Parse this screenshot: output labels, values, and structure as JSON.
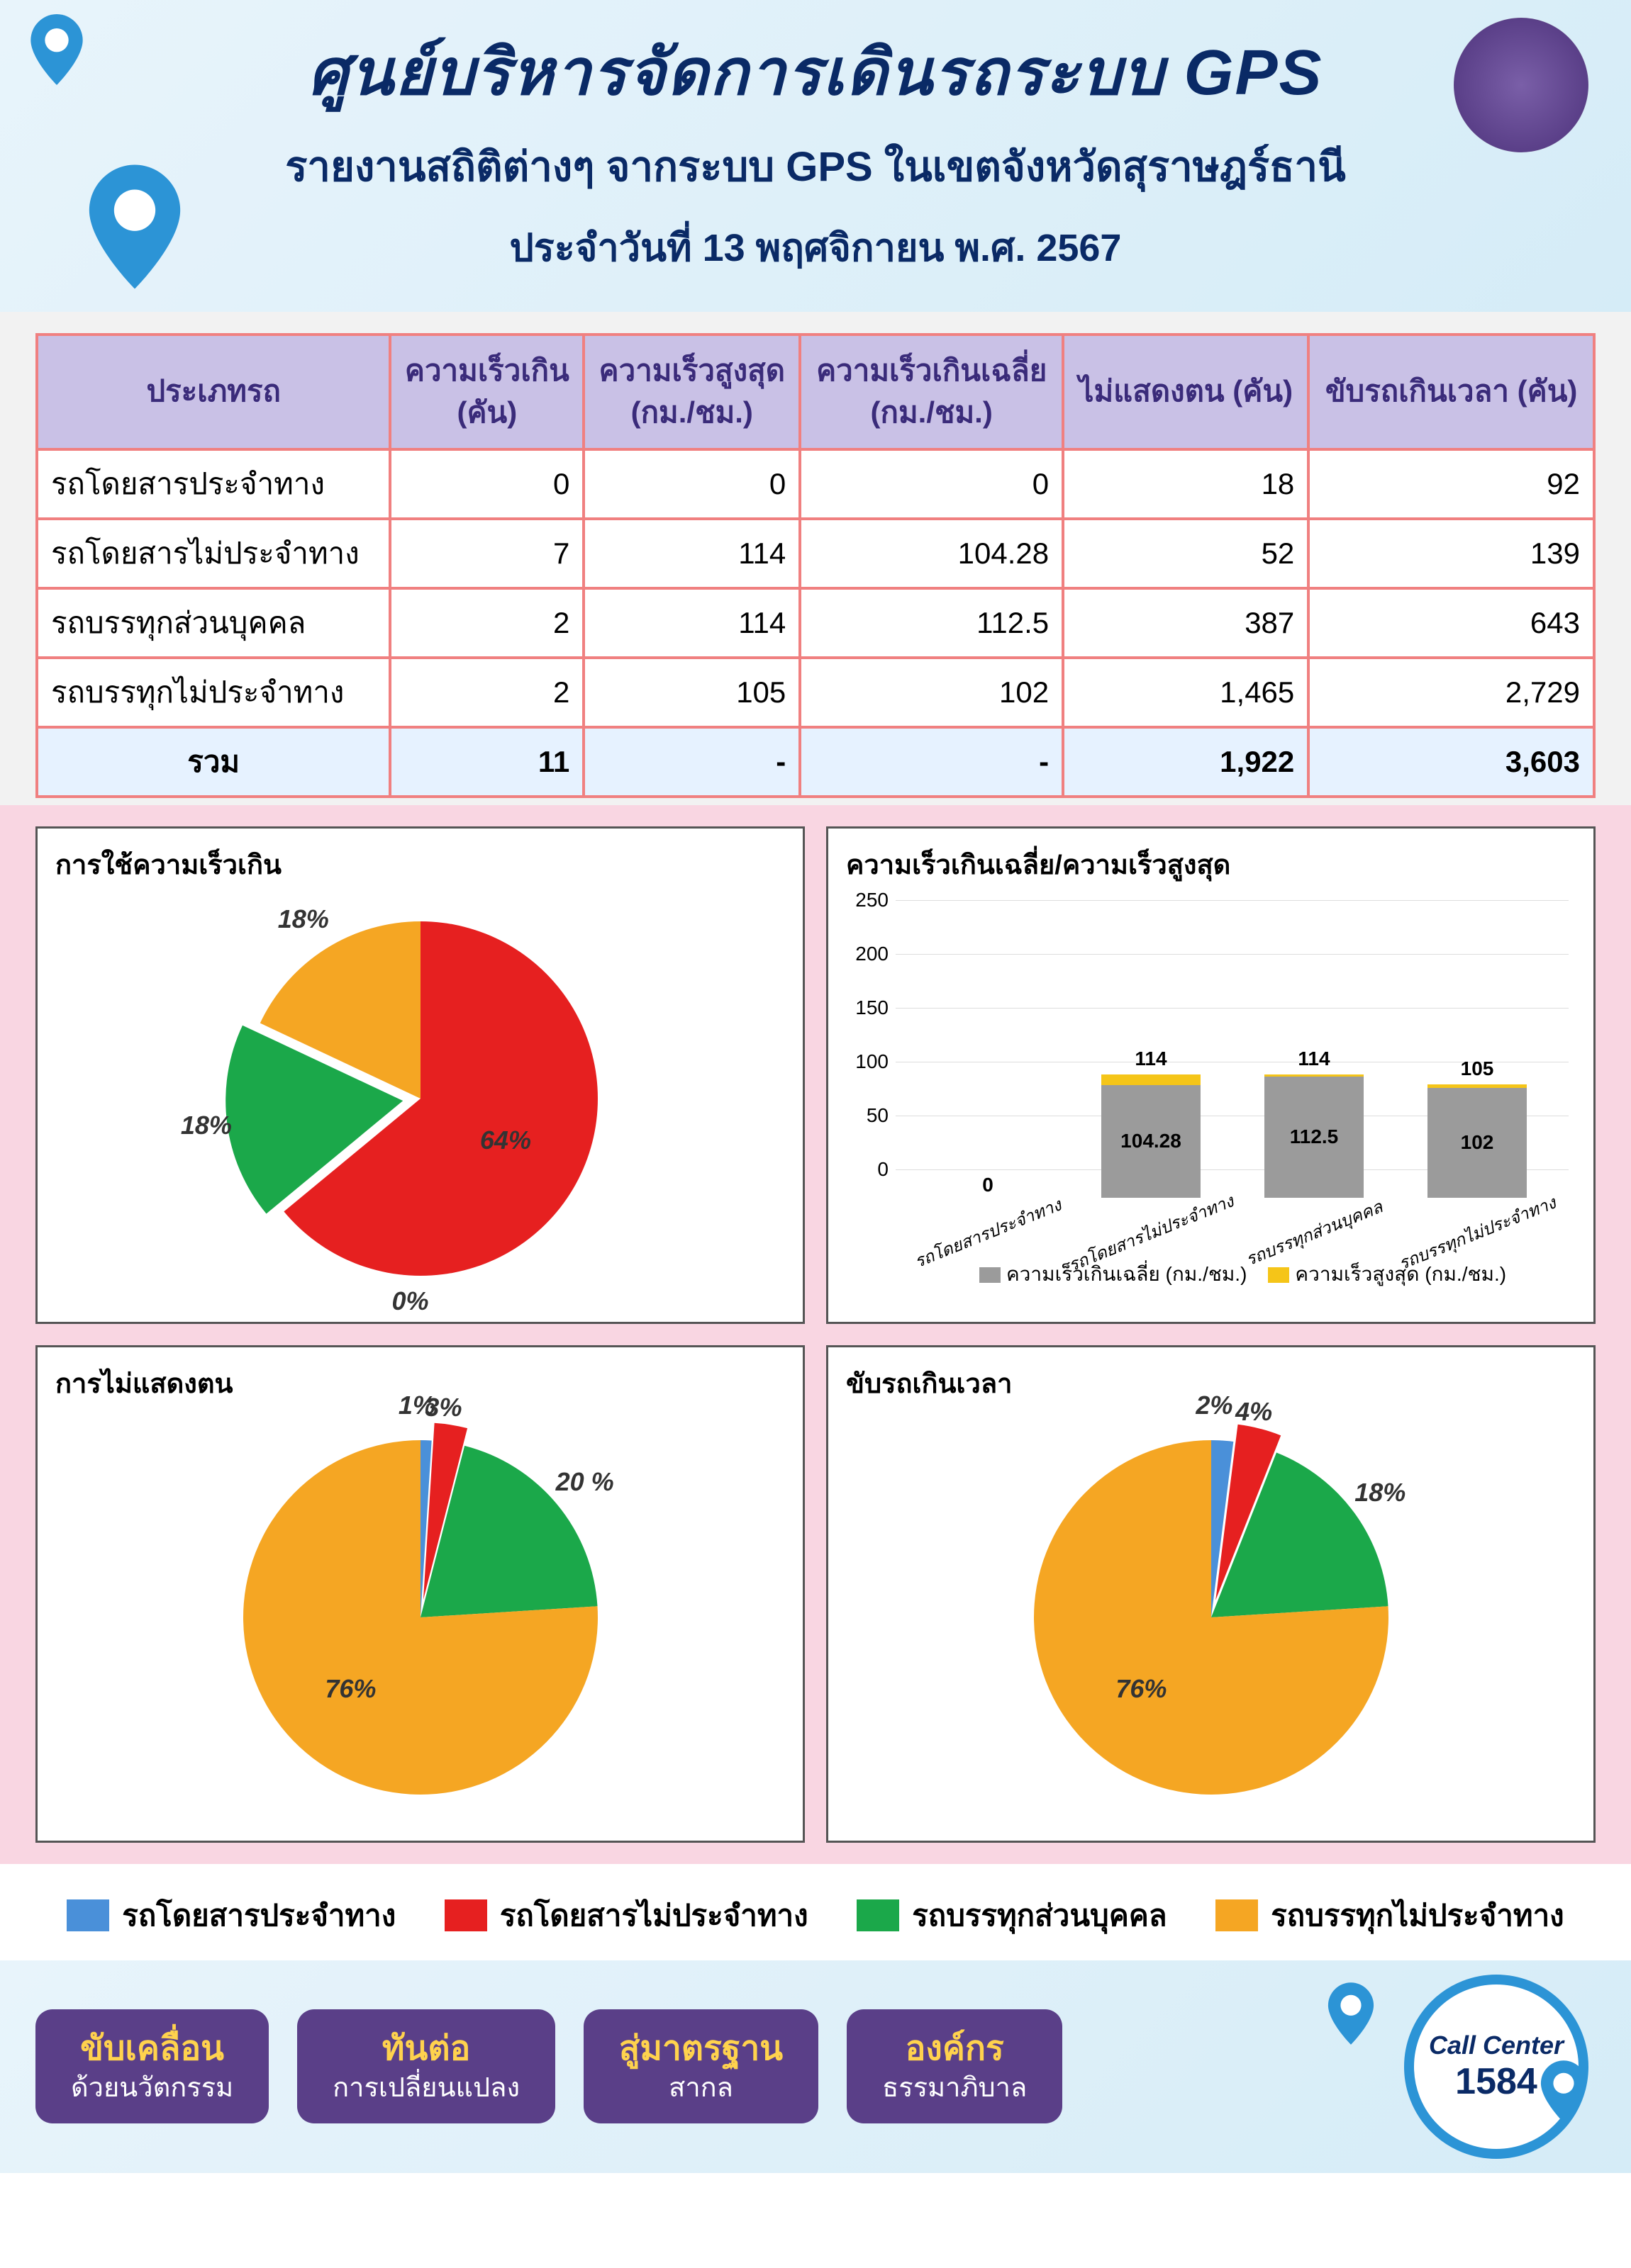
{
  "header": {
    "title": "ศูนย์บริหารจัดการเดินรถระบบ GPS",
    "subtitle": "รายงานสถิติต่างๆ จากระบบ GPS ในเขตจังหวัดสุราษฎร์ธานี",
    "date_line": "ประจำวันที่  13  พฤศจิกายน  พ.ศ. 2567"
  },
  "colors": {
    "cat_blue": "#4a90d9",
    "cat_red": "#e62020",
    "cat_green": "#1ba84a",
    "cat_orange": "#f5a623",
    "bar_grey": "#9b9b9b",
    "bar_yellow": "#f5c518",
    "panel_pink": "#f9d6e2",
    "header_text": "#0a2a66",
    "table_header_bg": "#c9c1e6",
    "table_border": "#f08080"
  },
  "table": {
    "columns": [
      "ประเภทรถ",
      "ความเร็วเกิน\n(คัน)",
      "ความเร็วสูงสุด\n(กม./ชม.)",
      "ความเร็วเกินเฉลี่ย\n(กม./ชม.)",
      "ไม่แสดงตน (คัน)",
      "ขับรถเกินเวลา (คัน)"
    ],
    "rows": [
      [
        "รถโดยสารประจำทาง",
        "0",
        "0",
        "0",
        "18",
        "92"
      ],
      [
        "รถโดยสารไม่ประจำทาง",
        "7",
        "114",
        "104.28",
        "52",
        "139"
      ],
      [
        "รถบรรทุกส่วนบุคคล",
        "2",
        "114",
        "112.5",
        "387",
        "643"
      ],
      [
        "รถบรรทุกไม่ประจำทาง",
        "2",
        "105",
        "102",
        "1,465",
        "2,729"
      ]
    ],
    "total": [
      "รวม",
      "11",
      "-",
      "-",
      "1,922",
      "3,603"
    ]
  },
  "categories": [
    "รถโดยสารประจำทาง",
    "รถโดยสารไม่ประจำทาง",
    "รถบรรทุกส่วนบุคคล",
    "รถบรรทุกไม่ประจำทาง"
  ],
  "pie_speed": {
    "title": "การใช้ความเร็วเกิน",
    "values": [
      0,
      64,
      18,
      18
    ],
    "labels": [
      "0%",
      "64%",
      "18%",
      "18%"
    ],
    "explode": 2
  },
  "pie_noshow": {
    "title": "การไม่แสดงตน",
    "values": [
      1,
      3,
      20,
      76
    ],
    "labels": [
      "1%",
      "3%",
      "20 %",
      "76%"
    ],
    "explode": 1
  },
  "pie_overtime": {
    "title": "ขับรถเกินเวลา",
    "values": [
      2,
      4,
      18,
      76
    ],
    "labels": [
      "2%",
      "4%",
      "18%",
      "76%"
    ],
    "explode": 1
  },
  "bar_chart": {
    "title": "ความเร็วเกินเฉลี่ย/ความเร็วสูงสุด",
    "ylim": [
      0,
      250
    ],
    "ytick_step": 50,
    "series_avg_label": "ความเร็วเกินเฉลี่ย (กม./ชม.)",
    "series_max_label": "ความเร็วสูงสุด (กม./ชม.)",
    "avg": [
      0,
      104.28,
      112.5,
      102
    ],
    "max_": [
      0,
      114,
      114,
      105
    ],
    "avg_labels": [
      "0",
      "104.28",
      "112.5",
      "102"
    ],
    "max_labels": [
      "",
      "114",
      "114",
      "105"
    ]
  },
  "legend": {
    "items": [
      "รถโดยสารประจำทาง",
      "รถโดยสารไม่ประจำทาง",
      "รถบรรทุกส่วนบุคคล",
      "รถบรรทุกไม่ประจำทาง"
    ]
  },
  "footer": {
    "pills": [
      {
        "l1": "ขับเคลื่อน",
        "l2": "ด้วยนวัตกรรม"
      },
      {
        "l1": "ทันต่อ",
        "l2": "การเปลี่ยนแปลง"
      },
      {
        "l1": "สู่มาตรฐาน",
        "l2": "สากล"
      },
      {
        "l1": "องค์กร",
        "l2": "ธรรมาภิบาล"
      }
    ],
    "call_center_l1": "Call Center",
    "call_center_l2": "1584"
  }
}
